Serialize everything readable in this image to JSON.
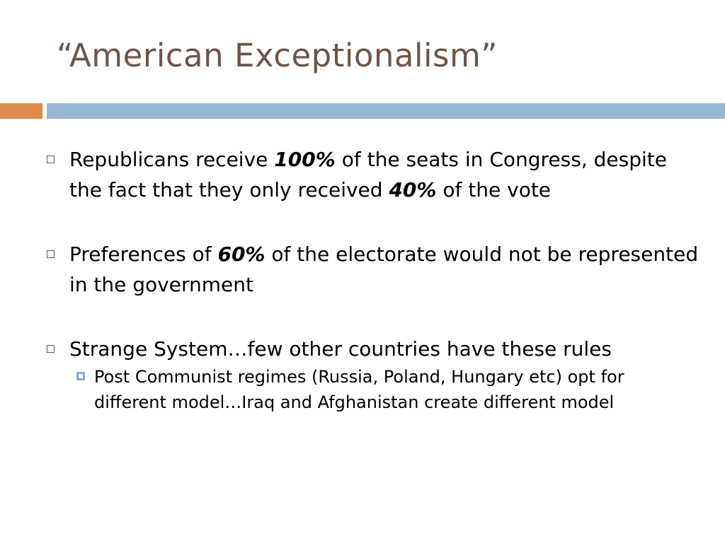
{
  "title": "“American Exceptionalism”",
  "bullets": [
    {
      "p1": "Republicans receive ",
      "e1": "100%",
      "p2": " of the seats in Congress, despite the fact that they only received ",
      "e2": "40%",
      "p3": " of the vote"
    },
    {
      "p1": "Preferences of ",
      "e1": "60%",
      "p2": " of the electorate would not be represented in the government"
    },
    {
      "text": "Strange System…few other countries have these rules",
      "sub": "Post Communist regimes (Russia, Poland, Hungary etc) opt for different model…Iraq and Afghanistan create different model"
    }
  ],
  "colors": {
    "title": "#6b5548",
    "accent_orange": "#dc8a4d",
    "accent_blue": "#96b6d4"
  }
}
